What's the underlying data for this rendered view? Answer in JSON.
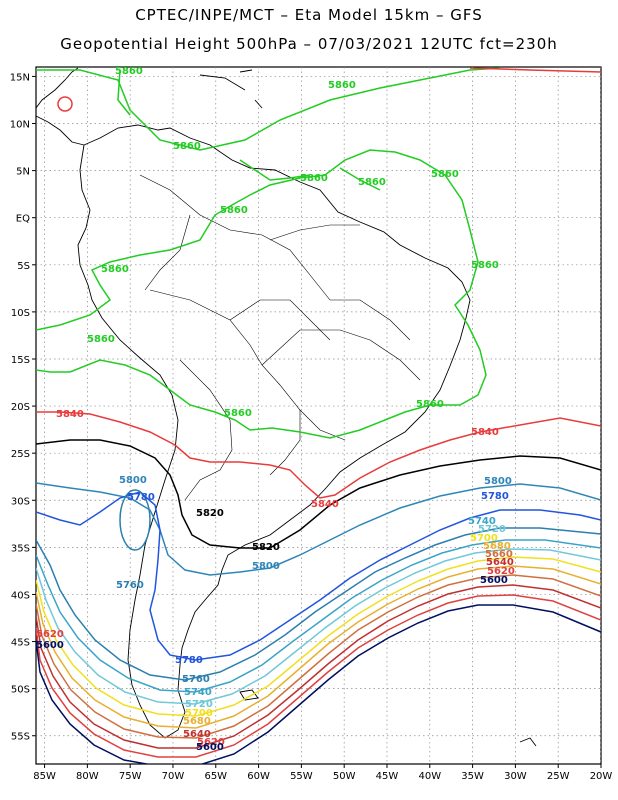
{
  "header": {
    "line1": "CPTEC/INPE/MCT –  Eta Model 15km – GFS",
    "line2": "Geopotential Height 500hPa – 07/03/2021 12UTC fct=230h"
  },
  "map": {
    "lon_range": [
      -86,
      -20
    ],
    "lat_range": [
      -58,
      16
    ],
    "lon_ticks": [
      "85W",
      "80W",
      "75W",
      "70W",
      "65W",
      "60W",
      "55W",
      "50W",
      "45W",
      "40W",
      "35W",
      "30W",
      "25W",
      "20W"
    ],
    "lat_ticks": [
      "15N",
      "10N",
      "5N",
      "EQ",
      "5S",
      "10S",
      "15S",
      "20S",
      "25S",
      "30S",
      "35S",
      "40S",
      "45S",
      "50S",
      "55S"
    ],
    "contour_colors": {
      "5860": "#22cc22",
      "5840": "#e83c3c",
      "5820": "#000000",
      "5800": "#2e86b8",
      "5780": "#2255dd",
      "5760": "#2b7fb0",
      "5740": "#3aa3c8",
      "5720": "#70c8d8",
      "5700": "#f0e020",
      "5680": "#e8b030",
      "5660": "#d07040",
      "5640": "#c03030",
      "5620": "#e04040",
      "5600": "#001060"
    },
    "contour_labels": {
      "l5860a": "5860",
      "l5860b": "5860",
      "l5860c": "5860",
      "l5860d": "5860",
      "l5860e": "5860",
      "l5860f": "5860",
      "l5860g": "5860",
      "l5860h": "5860",
      "l5860i": "5860",
      "l5860j": "5860",
      "l5860k": "5860",
      "l5840a": "5840",
      "l5840b": "5840",
      "l5840c": "5840",
      "l5820a": "5820",
      "l5820b": "5820",
      "l5800a": "5800",
      "l5800b": "5800",
      "l5800c": "5800",
      "l5780a": "5780",
      "l5780b": "5780",
      "l5780c": "5780",
      "l5760a": "5760",
      "l5760b": "5760",
      "l5740a": "5740",
      "l5740b": "5740",
      "l5720a": "5720",
      "l5720b": "5720",
      "l5700a": "5700",
      "l5700b": "5700",
      "l5680a": "5680",
      "l5680b": "5680",
      "l5660a": "5660",
      "l5640a": "5640",
      "l5640b": "5640",
      "l5620a": "5620",
      "l5620b": "5620",
      "l5620c": "5620",
      "l5600a": "5600",
      "l5600b": "5600",
      "l5600c": "5600"
    }
  }
}
